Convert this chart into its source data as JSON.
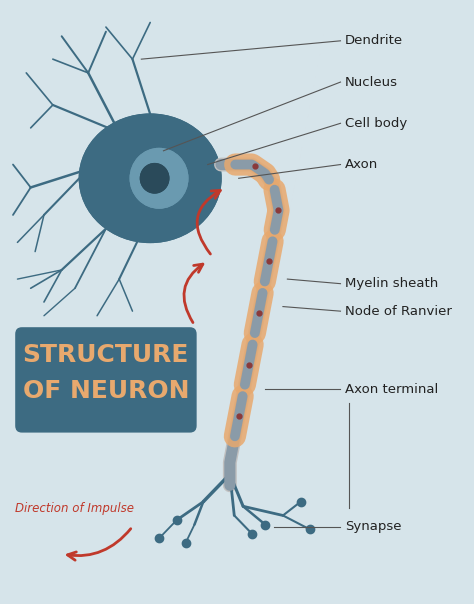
{
  "background_color": "#d6e4ea",
  "cell_body_color": "#3d6b82",
  "dendrite_color": "#3d6b82",
  "axon_color": "#3d6b82",
  "myelin_color": "#e8a96e",
  "node_color": "#c0c0c0",
  "nucleus_outer_color": "#6a9ab0",
  "nucleus_inner_color": "#2a4a5a",
  "arrow_color": "#c0392b",
  "label_line_color": "#555555",
  "title_bg_color": "#3d6b82",
  "title_text_color": "#e8a96e",
  "impulse_text_color": "#c0392b",
  "labels": {
    "dendrite": "Dendrite",
    "nucleus": "Nucleus",
    "cell_body": "Cell body",
    "axon": "Axon",
    "myelin_sheath": "Myelin sheath",
    "node_of_ranvier": "Node of Ranvier",
    "axon_terminal": "Axon terminal",
    "synapse": "Synapse",
    "direction": "Direction of Impulse",
    "title_line1": "STRUCTURE",
    "title_line2": "OF NEURON"
  }
}
